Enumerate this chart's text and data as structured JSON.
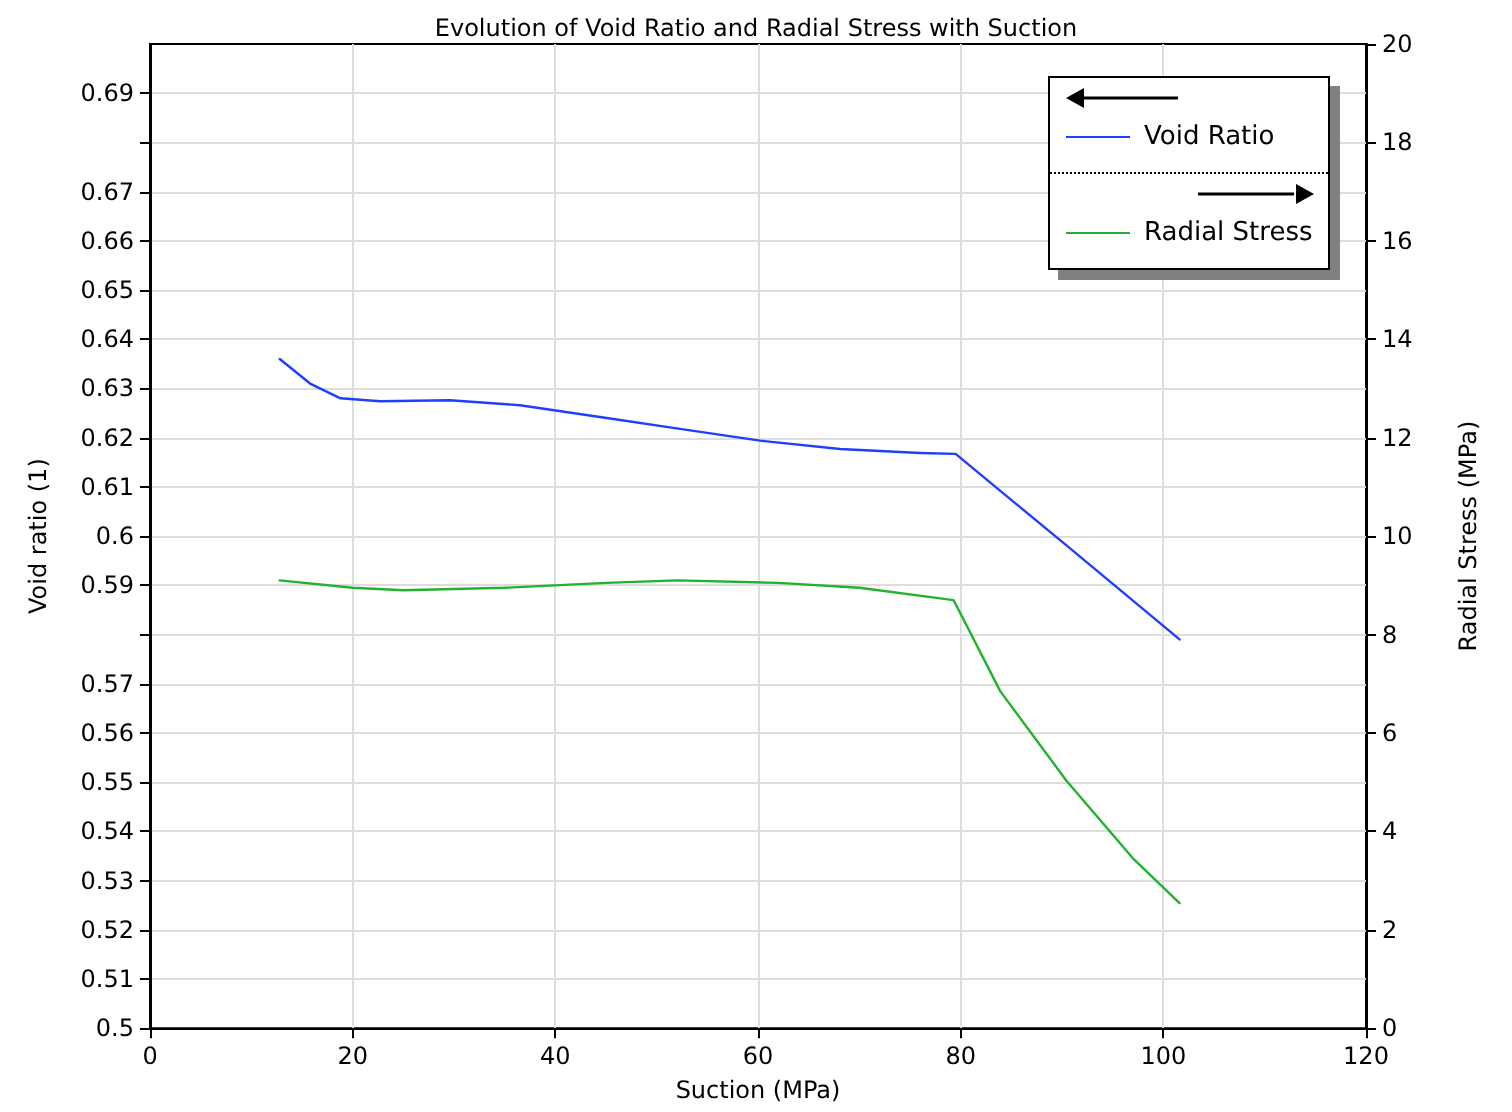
{
  "chart_data": {
    "type": "line",
    "title": "Evolution of Void Ratio and Radial Stress with Suction",
    "xlabel": "Suction (MPa)",
    "ylabel": "Void ratio (1)",
    "y2label": "Radial Stress (MPa)",
    "series": [
      {
        "name": "Void Ratio",
        "color": "#1f3fff",
        "x": [
          12.8,
          15.8,
          18.8,
          22.7,
          29.6,
          36.5,
          44.4,
          52.3,
          60.2,
          68.1,
          76,
          79.5,
          90.5,
          101.6
        ],
        "values": [
          0.636,
          0.631,
          0.628,
          0.6274,
          0.6276,
          0.6266,
          0.6242,
          0.6218,
          0.6194,
          0.6177,
          0.6169,
          0.6167,
          0.598,
          0.579
        ]
      },
      {
        "name": "Radial Stress",
        "color": "#22b22e",
        "axis": "y2",
        "x": [
          12.8,
          20,
          25,
          35,
          45,
          52,
          62,
          70,
          79.3,
          83.9,
          90.4,
          97.1,
          101.6
        ],
        "values": [
          9.1,
          8.95,
          8.9,
          8.95,
          9.05,
          9.1,
          9.05,
          8.95,
          8.7,
          6.85,
          5.04,
          3.43,
          2.54
        ]
      }
    ],
    "xlim": [
      0,
      120
    ],
    "xticks": [
      0,
      20,
      40,
      60,
      80,
      100,
      120
    ],
    "ylim": [
      0.5,
      0.7
    ],
    "yticks": [
      0.5,
      0.51,
      0.52,
      0.53,
      0.54,
      0.55,
      0.56,
      0.57,
      {
        "value": 0.58,
        "label": null
      },
      0.59,
      0.6,
      0.61,
      0.62,
      0.63,
      0.64,
      0.65,
      0.66,
      0.67,
      {
        "value": 0.68,
        "label": null
      },
      0.69
    ],
    "y2lim": [
      0,
      20
    ],
    "y2ticks": [
      0,
      2,
      4,
      6,
      8,
      10,
      12,
      14,
      16,
      18,
      20
    ],
    "grid": true,
    "legend": "top right",
    "marker": "none",
    "line_style": "solid"
  }
}
